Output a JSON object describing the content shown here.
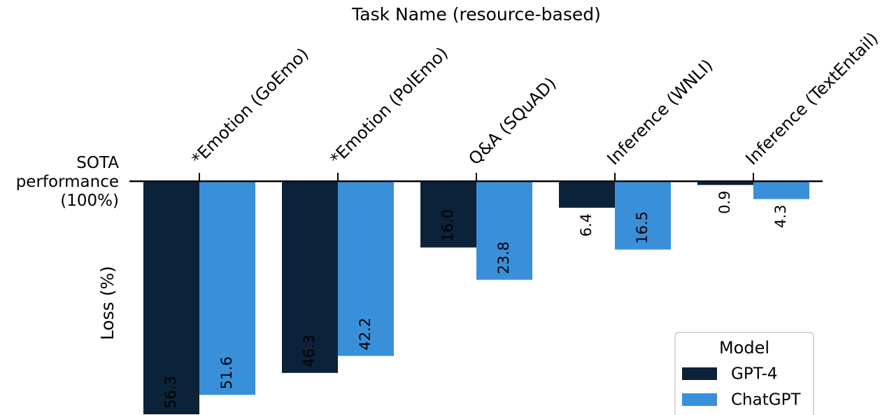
{
  "chart_data": {
    "type": "bar",
    "x_label": "Task Name (resource-based)",
    "y_label": "Loss (%)",
    "categories": [
      "*Emotion (GoEmo)",
      "*Emotion (PolEmo)",
      "Q&A (SQuAD)",
      "Inference (WNLI)",
      "Inference (TextEntail)"
    ],
    "series": [
      {
        "name": "GPT-4",
        "color": "#0b2239",
        "values": [
          56.3,
          46.3,
          16.0,
          6.4,
          0.9
        ],
        "value_labels": [
          "56.3",
          "46.3",
          "16.0",
          "6.4",
          "0.9"
        ]
      },
      {
        "name": "ChatGPT",
        "color": "#3a8fd9",
        "values": [
          51.6,
          42.2,
          23.8,
          16.5,
          4.3
        ],
        "value_labels": [
          "51.6",
          "42.2",
          "23.8",
          "16.5",
          "4.3"
        ]
      }
    ],
    "ylim": [
      0,
      56.3
    ],
    "y_inverted": true,
    "yticks": [
      {
        "value": 0,
        "label": "SOTA\nperformance\n(100%)"
      }
    ],
    "legend_title": "Model",
    "legend": "lower right",
    "grid": false
  }
}
